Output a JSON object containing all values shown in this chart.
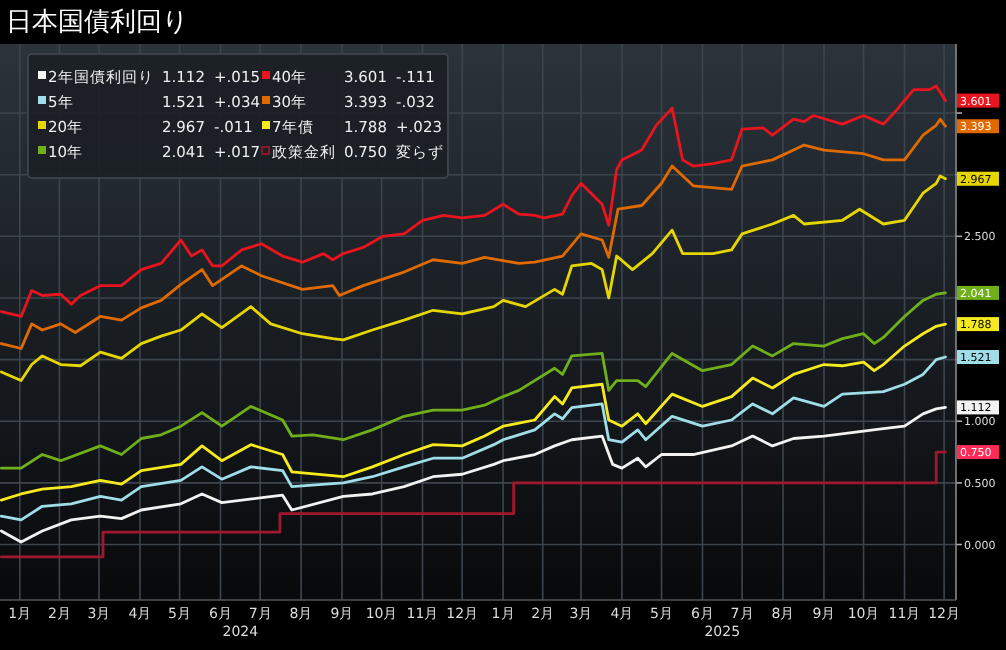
{
  "chart_data": {
    "type": "line",
    "title": "日本国債利回り",
    "xlim": [
      "2024-01-01",
      "2025-12-25"
    ],
    "ylim": [
      -0.45,
      4.06
    ],
    "xticks": [
      {
        "value": "2024-01-16",
        "label": "1月"
      },
      {
        "value": "2024-02-15",
        "label": "2月"
      },
      {
        "value": "2024-03-16",
        "label": "3月"
      },
      {
        "value": "2024-04-16",
        "label": "4月"
      },
      {
        "value": "2024-05-16",
        "label": "5月"
      },
      {
        "value": "2024-06-16",
        "label": "6月"
      },
      {
        "value": "2024-07-16",
        "label": "7月"
      },
      {
        "value": "2024-08-16",
        "label": "8月"
      },
      {
        "value": "2024-09-16",
        "label": "9月"
      },
      {
        "value": "2024-10-16",
        "label": "10月"
      },
      {
        "value": "2024-11-16",
        "label": "11月"
      },
      {
        "value": "2024-12-16",
        "label": "12月"
      },
      {
        "value": "2025-01-16",
        "label": "1月"
      },
      {
        "value": "2025-02-15",
        "label": "2月"
      },
      {
        "value": "2025-03-16",
        "label": "3月"
      },
      {
        "value": "2025-04-16",
        "label": "4月"
      },
      {
        "value": "2025-05-16",
        "label": "5月"
      },
      {
        "value": "2025-06-16",
        "label": "6月"
      },
      {
        "value": "2025-07-16",
        "label": "7月"
      },
      {
        "value": "2025-08-16",
        "label": "8月"
      },
      {
        "value": "2025-09-16",
        "label": "9月"
      },
      {
        "value": "2025-10-16",
        "label": "10月"
      },
      {
        "value": "2025-11-16",
        "label": "11月"
      },
      {
        "value": "2025-12-16",
        "label": "12月"
      }
    ],
    "yticks": [
      {
        "value": 0,
        "label": "0.000"
      },
      {
        "value": 0.5,
        "label": "0.500"
      },
      {
        "value": 1,
        "label": "1.000"
      },
      {
        "value": 1.5,
        "label": null
      },
      {
        "value": 2,
        "label": null
      },
      {
        "value": 2.5,
        "label": "2.500"
      },
      {
        "value": 3,
        "label": null
      },
      {
        "value": 3.5,
        "label": null
      }
    ],
    "grid": true,
    "legend": "top left",
    "series": [
      {
        "name": "2年国債利回り",
        "color": "#f2f2f2",
        "x": [
          "2024-01-02",
          "2024-01-17",
          "2024-02-02",
          "2024-02-24",
          "2024-03-17",
          "2024-04-02",
          "2024-04-17",
          "2024-05-17",
          "2024-06-02",
          "2024-06-17",
          "2024-08-02",
          "2024-08-09",
          "2024-09-17",
          "2024-10-09",
          "2024-11-02",
          "2024-11-24",
          "2024-12-16",
          "2025-01-09",
          "2025-01-16",
          "2025-02-09",
          "2025-02-24",
          "2025-03-09",
          "2025-04-01",
          "2025-04-09",
          "2025-04-16",
          "2025-04-28",
          "2025-05-04",
          "2025-05-16",
          "2025-06-09",
          "2025-07-08",
          "2025-07-24",
          "2025-08-08",
          "2025-08-24",
          "2025-09-16",
          "2025-10-31",
          "2025-11-16",
          "2025-11-30",
          "2025-12-10",
          "2025-12-17"
        ],
        "values": [
          0.11,
          0.02,
          0.11,
          0.2,
          0.23,
          0.21,
          0.28,
          0.33,
          0.41,
          0.34,
          0.4,
          0.28,
          0.39,
          0.41,
          0.47,
          0.55,
          0.57,
          0.65,
          0.68,
          0.73,
          0.8,
          0.85,
          0.88,
          0.65,
          0.62,
          0.7,
          0.63,
          0.73,
          0.73,
          0.8,
          0.88,
          0.8,
          0.86,
          0.88,
          0.94,
          0.96,
          1.06,
          1.1,
          1.112
        ],
        "value_labels": [
          null,
          null,
          null,
          null,
          null,
          null,
          null,
          null,
          null,
          null,
          null,
          null,
          null,
          null,
          null,
          null,
          null,
          null,
          null,
          null,
          null,
          null,
          null,
          null,
          null,
          null,
          null,
          null,
          null,
          null,
          null,
          null,
          null,
          null,
          null,
          null,
          null,
          null,
          "1.112"
        ]
      },
      {
        "name": "5年",
        "color": "#9fdde8",
        "x": [
          "2024-01-02",
          "2024-01-17",
          "2024-02-02",
          "2024-02-24",
          "2024-03-17",
          "2024-04-02",
          "2024-04-17",
          "2024-05-17",
          "2024-06-02",
          "2024-06-17",
          "2024-07-09",
          "2024-08-02",
          "2024-08-09",
          "2024-09-17",
          "2024-10-09",
          "2024-11-02",
          "2024-11-24",
          "2024-12-16",
          "2025-01-09",
          "2025-01-16",
          "2025-02-09",
          "2025-02-24",
          "2025-03-02",
          "2025-03-09",
          "2025-04-01",
          "2025-04-06",
          "2025-04-16",
          "2025-04-28",
          "2025-05-04",
          "2025-05-24",
          "2025-06-16",
          "2025-07-08",
          "2025-07-24",
          "2025-08-08",
          "2025-08-24",
          "2025-09-16",
          "2025-09-30",
          "2025-10-31",
          "2025-11-16",
          "2025-11-30",
          "2025-12-10",
          "2025-12-17"
        ],
        "values": [
          0.23,
          0.2,
          0.31,
          0.33,
          0.39,
          0.36,
          0.47,
          0.52,
          0.63,
          0.53,
          0.63,
          0.6,
          0.47,
          0.5,
          0.55,
          0.63,
          0.7,
          0.7,
          0.81,
          0.85,
          0.93,
          1.06,
          1.02,
          1.11,
          1.14,
          0.85,
          0.83,
          0.93,
          0.85,
          1.04,
          0.96,
          1.01,
          1.14,
          1.06,
          1.19,
          1.12,
          1.22,
          1.24,
          1.3,
          1.38,
          1.5,
          1.521
        ],
        "value_labels": [
          null,
          null,
          null,
          null,
          null,
          null,
          null,
          null,
          null,
          null,
          null,
          null,
          null,
          null,
          null,
          null,
          null,
          null,
          null,
          null,
          null,
          null,
          null,
          null,
          null,
          null,
          null,
          null,
          null,
          null,
          null,
          null,
          null,
          null,
          null,
          null,
          null,
          null,
          null,
          null,
          null,
          "1.521"
        ]
      },
      {
        "name": "20年",
        "color": "#e6d600",
        "x": [
          "2024-01-02",
          "2024-01-17",
          "2024-01-25",
          "2024-02-02",
          "2024-02-16",
          "2024-03-02",
          "2024-03-17",
          "2024-04-02",
          "2024-04-17",
          "2024-05-02",
          "2024-05-17",
          "2024-06-02",
          "2024-06-17",
          "2024-07-09",
          "2024-07-24",
          "2024-08-17",
          "2024-09-09",
          "2024-09-17",
          "2024-10-09",
          "2024-11-02",
          "2024-11-24",
          "2024-12-16",
          "2025-01-09",
          "2025-01-16",
          "2025-02-02",
          "2025-02-24",
          "2025-03-02",
          "2025-03-09",
          "2025-03-24",
          "2025-04-01",
          "2025-04-06",
          "2025-04-12",
          "2025-04-24",
          "2025-05-09",
          "2025-05-24",
          "2025-06-01",
          "2025-06-24",
          "2025-07-08",
          "2025-07-16",
          "2025-08-08",
          "2025-08-24",
          "2025-09-01",
          "2025-09-30",
          "2025-10-13",
          "2025-10-31",
          "2025-11-16",
          "2025-11-30",
          "2025-12-10",
          "2025-12-13",
          "2025-12-17"
        ],
        "values": [
          1.4,
          1.33,
          1.46,
          1.53,
          1.46,
          1.45,
          1.56,
          1.51,
          1.63,
          1.69,
          1.74,
          1.87,
          1.76,
          1.93,
          1.79,
          1.71,
          1.67,
          1.66,
          1.74,
          1.82,
          1.9,
          1.87,
          1.93,
          1.98,
          1.93,
          2.07,
          2.03,
          2.26,
          2.28,
          2.23,
          2.0,
          2.34,
          2.23,
          2.36,
          2.55,
          2.36,
          2.36,
          2.39,
          2.52,
          2.6,
          2.67,
          2.6,
          2.63,
          2.72,
          2.6,
          2.63,
          2.85,
          2.93,
          2.99,
          2.967
        ],
        "value_labels": [
          null,
          null,
          null,
          null,
          null,
          null,
          null,
          null,
          null,
          null,
          null,
          null,
          null,
          null,
          null,
          null,
          null,
          null,
          null,
          null,
          null,
          null,
          null,
          null,
          null,
          null,
          null,
          null,
          null,
          null,
          null,
          null,
          null,
          null,
          null,
          null,
          null,
          null,
          null,
          null,
          null,
          null,
          null,
          null,
          null,
          null,
          null,
          null,
          null,
          "2.967"
        ]
      },
      {
        "name": "10年",
        "color": "#6fb01a",
        "x": [
          "2024-01-02",
          "2024-01-17",
          "2024-02-02",
          "2024-02-16",
          "2024-03-17",
          "2024-04-02",
          "2024-04-17",
          "2024-05-02",
          "2024-05-17",
          "2024-06-02",
          "2024-06-17",
          "2024-07-09",
          "2024-08-02",
          "2024-08-09",
          "2024-08-25",
          "2024-09-17",
          "2024-10-09",
          "2024-11-02",
          "2024-11-24",
          "2024-12-16",
          "2025-01-02",
          "2025-01-16",
          "2025-01-28",
          "2025-02-24",
          "2025-03-02",
          "2025-03-09",
          "2025-04-01",
          "2025-04-06",
          "2025-04-12",
          "2025-04-28",
          "2025-05-04",
          "2025-05-24",
          "2025-06-16",
          "2025-07-08",
          "2025-07-24",
          "2025-08-08",
          "2025-08-24",
          "2025-09-16",
          "2025-09-30",
          "2025-10-16",
          "2025-10-24",
          "2025-10-31",
          "2025-11-16",
          "2025-11-30",
          "2025-12-10",
          "2025-12-17"
        ],
        "values": [
          0.62,
          0.62,
          0.73,
          0.68,
          0.8,
          0.73,
          0.86,
          0.89,
          0.96,
          1.07,
          0.96,
          1.12,
          1.01,
          0.88,
          0.89,
          0.85,
          0.93,
          1.04,
          1.09,
          1.09,
          1.13,
          1.2,
          1.25,
          1.43,
          1.38,
          1.53,
          1.55,
          1.25,
          1.33,
          1.33,
          1.28,
          1.55,
          1.41,
          1.46,
          1.61,
          1.53,
          1.63,
          1.61,
          1.67,
          1.71,
          1.63,
          1.68,
          1.85,
          1.98,
          2.03,
          2.041
        ],
        "value_labels": [
          null,
          null,
          null,
          null,
          null,
          null,
          null,
          null,
          null,
          null,
          null,
          null,
          null,
          null,
          null,
          null,
          null,
          null,
          null,
          null,
          null,
          null,
          null,
          null,
          null,
          null,
          null,
          null,
          null,
          null,
          null,
          null,
          null,
          null,
          null,
          null,
          null,
          null,
          null,
          null,
          null,
          null,
          null,
          null,
          null,
          "2.041"
        ]
      },
      {
        "name": "40年",
        "color": "#e8141e",
        "x": [
          "2024-01-02",
          "2024-01-17",
          "2024-01-25",
          "2024-02-02",
          "2024-02-16",
          "2024-02-24",
          "2024-03-02",
          "2024-03-17",
          "2024-04-02",
          "2024-04-17",
          "2024-05-02",
          "2024-05-17",
          "2024-05-25",
          "2024-06-02",
          "2024-06-10",
          "2024-06-17",
          "2024-07-02",
          "2024-07-17",
          "2024-08-02",
          "2024-08-17",
          "2024-09-02",
          "2024-09-09",
          "2024-09-17",
          "2024-10-02",
          "2024-10-17",
          "2024-11-02",
          "2024-11-16",
          "2024-12-02",
          "2024-12-16",
          "2025-01-02",
          "2025-01-16",
          "2025-01-28",
          "2025-02-09",
          "2025-02-16",
          "2025-03-02",
          "2025-03-09",
          "2025-03-16",
          "2025-04-01",
          "2025-04-06",
          "2025-04-12",
          "2025-04-16",
          "2025-05-01",
          "2025-05-12",
          "2025-05-24",
          "2025-06-01",
          "2025-06-09",
          "2025-06-24",
          "2025-07-08",
          "2025-07-16",
          "2025-08-01",
          "2025-08-08",
          "2025-08-24",
          "2025-09-01",
          "2025-09-08",
          "2025-09-30",
          "2025-10-16",
          "2025-10-31",
          "2025-11-08",
          "2025-11-23",
          "2025-12-05",
          "2025-12-10",
          "2025-12-17"
        ],
        "values": [
          1.89,
          1.85,
          2.06,
          2.02,
          2.03,
          1.95,
          2.02,
          2.1,
          2.1,
          2.23,
          2.28,
          2.47,
          2.34,
          2.39,
          2.26,
          2.26,
          2.39,
          2.44,
          2.34,
          2.29,
          2.36,
          2.31,
          2.36,
          2.41,
          2.5,
          2.52,
          2.63,
          2.67,
          2.65,
          2.67,
          2.76,
          2.68,
          2.67,
          2.65,
          2.68,
          2.83,
          2.93,
          2.76,
          2.59,
          3.04,
          3.12,
          3.2,
          3.4,
          3.54,
          3.12,
          3.07,
          3.09,
          3.12,
          3.37,
          3.38,
          3.32,
          3.45,
          3.43,
          3.48,
          3.41,
          3.48,
          3.41,
          3.5,
          3.69,
          3.69,
          3.72,
          3.601
        ],
        "value_labels": [
          null,
          null,
          null,
          null,
          null,
          null,
          null,
          null,
          null,
          null,
          null,
          null,
          null,
          null,
          null,
          null,
          null,
          null,
          null,
          null,
          null,
          null,
          null,
          null,
          null,
          null,
          null,
          null,
          null,
          null,
          null,
          null,
          null,
          null,
          null,
          null,
          null,
          null,
          null,
          null,
          null,
          null,
          null,
          null,
          null,
          null,
          null,
          null,
          null,
          null,
          null,
          null,
          null,
          null,
          null,
          null,
          null,
          null,
          null,
          null,
          null,
          "3.601"
        ]
      },
      {
        "name": "30年",
        "color": "#e06a00",
        "x": [
          "2024-01-02",
          "2024-01-17",
          "2024-01-25",
          "2024-02-02",
          "2024-02-16",
          "2024-02-27",
          "2024-03-17",
          "2024-04-02",
          "2024-04-17",
          "2024-05-02",
          "2024-05-17",
          "2024-06-02",
          "2024-06-10",
          "2024-07-02",
          "2024-07-17",
          "2024-08-17",
          "2024-09-09",
          "2024-09-14",
          "2024-10-02",
          "2024-11-02",
          "2024-11-24",
          "2024-12-16",
          "2025-01-02",
          "2025-01-28",
          "2025-02-09",
          "2025-03-02",
          "2025-03-16",
          "2025-04-01",
          "2025-04-06",
          "2025-04-13",
          "2025-05-01",
          "2025-05-16",
          "2025-05-24",
          "2025-06-09",
          "2025-07-08",
          "2025-07-16",
          "2025-08-08",
          "2025-09-01",
          "2025-09-16",
          "2025-10-16",
          "2025-10-31",
          "2025-11-16",
          "2025-11-30",
          "2025-12-10",
          "2025-12-13",
          "2025-12-17"
        ],
        "values": [
          1.63,
          1.59,
          1.79,
          1.74,
          1.79,
          1.72,
          1.85,
          1.82,
          1.92,
          1.98,
          2.11,
          2.23,
          2.1,
          2.26,
          2.18,
          2.07,
          2.1,
          2.02,
          2.1,
          2.21,
          2.31,
          2.28,
          2.33,
          2.28,
          2.29,
          2.34,
          2.52,
          2.47,
          2.33,
          2.72,
          2.75,
          2.93,
          3.07,
          2.91,
          2.88,
          3.07,
          3.12,
          3.24,
          3.2,
          3.17,
          3.12,
          3.12,
          3.32,
          3.4,
          3.45,
          3.393
        ],
        "value_labels": [
          null,
          null,
          null,
          null,
          null,
          null,
          null,
          null,
          null,
          null,
          null,
          null,
          null,
          null,
          null,
          null,
          null,
          null,
          null,
          null,
          null,
          null,
          null,
          null,
          null,
          null,
          null,
          null,
          null,
          null,
          null,
          null,
          null,
          null,
          null,
          null,
          null,
          null,
          null,
          null,
          null,
          null,
          null,
          null,
          null,
          "3.393"
        ]
      },
      {
        "name": "7年債",
        "color": "#f5ea1e",
        "x": [
          "2024-01-02",
          "2024-01-17",
          "2024-02-02",
          "2024-02-24",
          "2024-03-17",
          "2024-04-02",
          "2024-04-17",
          "2024-05-17",
          "2024-06-02",
          "2024-06-17",
          "2024-07-09",
          "2024-08-02",
          "2024-08-09",
          "2024-09-17",
          "2024-10-09",
          "2024-11-02",
          "2024-11-24",
          "2024-12-16",
          "2025-01-02",
          "2025-01-16",
          "2025-02-09",
          "2025-02-24",
          "2025-03-02",
          "2025-03-09",
          "2025-04-01",
          "2025-04-06",
          "2025-04-16",
          "2025-04-28",
          "2025-05-04",
          "2025-05-24",
          "2025-06-16",
          "2025-07-08",
          "2025-07-24",
          "2025-08-08",
          "2025-08-24",
          "2025-09-16",
          "2025-09-30",
          "2025-10-16",
          "2025-10-24",
          "2025-10-31",
          "2025-11-16",
          "2025-11-30",
          "2025-12-10",
          "2025-12-17"
        ],
        "values": [
          0.36,
          0.41,
          0.45,
          0.47,
          0.52,
          0.49,
          0.6,
          0.65,
          0.8,
          0.68,
          0.81,
          0.73,
          0.59,
          0.55,
          0.63,
          0.73,
          0.81,
          0.8,
          0.88,
          0.96,
          1.01,
          1.2,
          1.14,
          1.27,
          1.3,
          1.01,
          0.96,
          1.06,
          0.98,
          1.22,
          1.12,
          1.2,
          1.35,
          1.27,
          1.38,
          1.46,
          1.45,
          1.48,
          1.41,
          1.46,
          1.61,
          1.71,
          1.77,
          1.788
        ],
        "value_labels": [
          null,
          null,
          null,
          null,
          null,
          null,
          null,
          null,
          null,
          null,
          null,
          null,
          null,
          null,
          null,
          null,
          null,
          null,
          null,
          null,
          null,
          null,
          null,
          null,
          null,
          null,
          null,
          null,
          null,
          null,
          null,
          null,
          null,
          null,
          null,
          null,
          null,
          null,
          null,
          null,
          null,
          null,
          null,
          "1.788"
        ]
      },
      {
        "name": "政策金利",
        "color": "#a0182e",
        "type": "step",
        "x": [
          "2024-01-02",
          "2024-03-19",
          "2024-07-31",
          "2025-01-24",
          "2025-12-10",
          "2025-12-17"
        ],
        "values": [
          -0.1,
          0.1,
          0.25,
          0.5,
          0.75,
          0.75
        ],
        "value_labels": [
          null,
          null,
          null,
          null,
          null,
          "0.750"
        ]
      }
    ],
    "annotations": [
      "1.112 +.015",
      "1.521 +.034",
      "2.967 -.011",
      "2.041 +.017",
      "3.601 -.111",
      "3.393 -.032",
      "1.788 +.023",
      "0.750 変らず",
      "2024",
      "2025"
    ]
  }
}
